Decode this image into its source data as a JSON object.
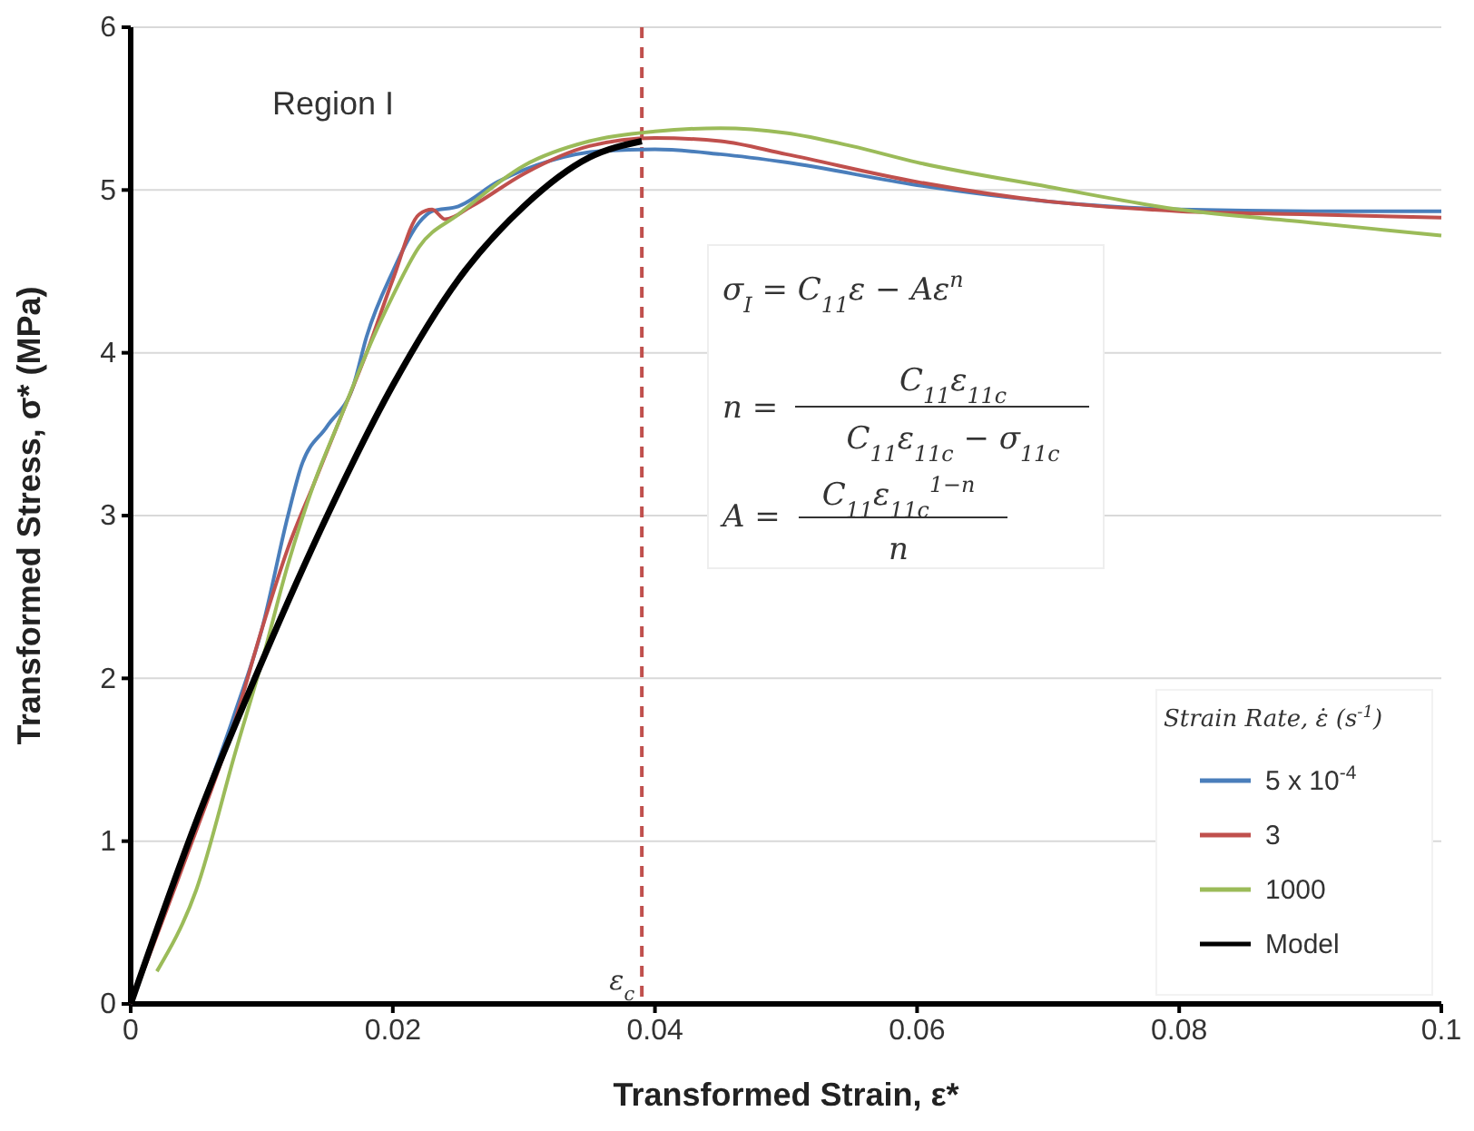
{
  "chart_data": {
    "type": "line",
    "xlabel": "Transformed Strain, ε*",
    "ylabel": "Transformed Stress, σ* (MPa)",
    "legend_title": "Strain Rate, ε̇ (s$^{-1}$)",
    "xlim": [
      0,
      0.1
    ],
    "ylim": [
      0,
      6
    ],
    "xticks": [
      0,
      0.02,
      0.04,
      0.06,
      0.08,
      0.1
    ],
    "yticks": [
      0,
      1,
      2,
      3,
      4,
      5,
      6
    ],
    "grid": "y",
    "legend": "bottom right",
    "line_style": "solid",
    "ref_lines": [
      {
        "axis": "x",
        "value": 0.039,
        "label": "ε$_{c}$",
        "color": "#c0504d",
        "line_style": "dashed"
      }
    ],
    "annotations": [
      "Region I",
      "σ$_{I}$ = C$_{11}$ε − Aε$^{n}$",
      "n =",
      "C$_{11}$ε$_{11c}$",
      "C$_{11}$ε$_{11c}$ − σ$_{11c}$",
      "A =",
      "C$_{11}$ε$_{11c}$$^{1−n}$",
      "n"
    ],
    "series": [
      {
        "name": "5 x 10$^{-4}$",
        "color": "#4a7ebb",
        "x": [
          0,
          0.004,
          0.008,
          0.01,
          0.012,
          0.013,
          0.015,
          0.017,
          0.018,
          0.02,
          0.022,
          0.023,
          0.025,
          0.028,
          0.032,
          0.036,
          0.04,
          0.045,
          0.05,
          0.06,
          0.07,
          0.08,
          0.09,
          0.1
        ],
        "values": [
          0,
          0.9,
          1.8,
          2.3,
          3.0,
          3.3,
          3.55,
          3.8,
          4.1,
          4.5,
          4.8,
          4.87,
          4.9,
          5.05,
          5.18,
          5.24,
          5.25,
          5.22,
          5.17,
          5.03,
          4.93,
          4.88,
          4.87,
          4.87
        ]
      },
      {
        "name": "3",
        "color": "#c0504d",
        "x": [
          0,
          0.004,
          0.008,
          0.01,
          0.012,
          0.014,
          0.016,
          0.018,
          0.02,
          0.022,
          0.023,
          0.024,
          0.026,
          0.03,
          0.035,
          0.04,
          0.045,
          0.05,
          0.06,
          0.07,
          0.08,
          0.09,
          0.1
        ],
        "values": [
          0,
          0.85,
          1.75,
          2.3,
          2.8,
          3.2,
          3.6,
          4.0,
          4.45,
          4.85,
          4.88,
          4.82,
          4.9,
          5.1,
          5.27,
          5.32,
          5.3,
          5.22,
          5.05,
          4.93,
          4.87,
          4.85,
          4.83
        ]
      },
      {
        "name": "1000",
        "color": "#9bbb59",
        "x": [
          0.002,
          0.005,
          0.008,
          0.01,
          0.012,
          0.014,
          0.016,
          0.018,
          0.02,
          0.022,
          0.025,
          0.03,
          0.035,
          0.04,
          0.045,
          0.05,
          0.055,
          0.06,
          0.07,
          0.08,
          0.09,
          0.1
        ],
        "values": [
          0.2,
          0.7,
          1.55,
          2.1,
          2.7,
          3.2,
          3.6,
          4.0,
          4.35,
          4.65,
          4.85,
          5.15,
          5.3,
          5.36,
          5.38,
          5.35,
          5.27,
          5.17,
          5.02,
          4.88,
          4.8,
          4.72
        ]
      },
      {
        "name": "Model",
        "color": "#000000",
        "x": [
          0,
          0.005,
          0.01,
          0.015,
          0.02,
          0.025,
          0.03,
          0.035,
          0.039
        ],
        "values": [
          0,
          1.12,
          2.1,
          3.0,
          3.8,
          4.45,
          4.9,
          5.2,
          5.3
        ]
      }
    ]
  }
}
